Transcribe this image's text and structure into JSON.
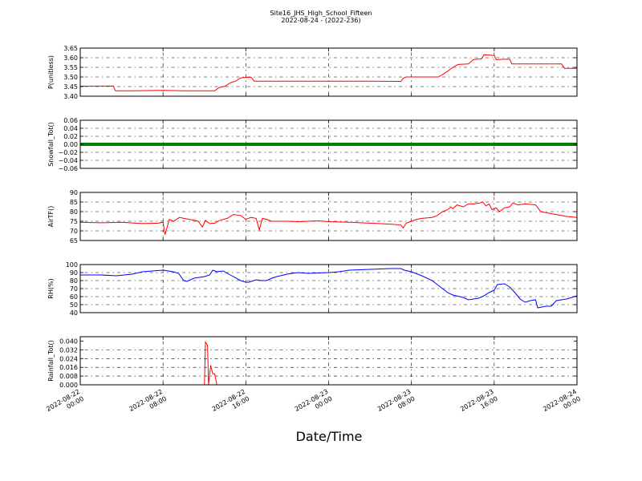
{
  "figure": {
    "title": "Site16_JHS_High_School_Fifteen",
    "subtitle": "2022-08-24 - (2022-236)",
    "xlabel": "Date/Time"
  },
  "chart_data": {
    "type": "line",
    "x_tick_labels": [
      [
        "2022-08-22",
        "00:00"
      ],
      [
        "2022-08-22",
        "08:00"
      ],
      [
        "2022-08-22",
        "16:00"
      ],
      [
        "2022-08-23",
        "00:00"
      ],
      [
        "2022-08-23",
        "08:00"
      ],
      [
        "2022-08-23",
        "16:00"
      ],
      [
        "2022-08-24",
        "00:00"
      ]
    ],
    "x_range_hours": [
      0,
      48
    ],
    "grid": true,
    "panels": [
      {
        "ylabel": "P(unitless)",
        "color": "#ff0000",
        "ylim": [
          3.4,
          3.65
        ],
        "yticks": [
          "3.40",
          "3.45",
          "3.50",
          "3.55",
          "3.60",
          "3.65"
        ],
        "ytick_values": [
          3.4,
          3.45,
          3.5,
          3.55,
          3.6,
          3.65
        ],
        "series": [
          [
            0,
            3.452
          ],
          [
            3.2,
            3.453
          ],
          [
            3.4,
            3.428
          ],
          [
            5,
            3.428
          ],
          [
            8,
            3.43
          ],
          [
            10,
            3.428
          ],
          [
            13,
            3.428
          ],
          [
            13.4,
            3.445
          ],
          [
            14,
            3.452
          ],
          [
            14.5,
            3.47
          ],
          [
            15,
            3.478
          ],
          [
            15.5,
            3.495
          ],
          [
            16,
            3.498
          ],
          [
            16.5,
            3.499
          ],
          [
            16.8,
            3.478
          ],
          [
            20,
            3.478
          ],
          [
            24,
            3.478
          ],
          [
            28,
            3.478
          ],
          [
            31,
            3.477
          ],
          [
            31.2,
            3.493
          ],
          [
            31.5,
            3.5
          ],
          [
            34,
            3.5
          ],
          [
            34.6,
            3.5
          ],
          [
            35,
            3.512
          ],
          [
            35.5,
            3.53
          ],
          [
            36,
            3.55
          ],
          [
            36.5,
            3.565
          ],
          [
            37.5,
            3.568
          ],
          [
            38,
            3.59
          ],
          [
            38.8,
            3.595
          ],
          [
            39,
            3.615
          ],
          [
            40,
            3.612
          ],
          [
            40.2,
            3.59
          ],
          [
            41,
            3.592
          ],
          [
            41.5,
            3.592
          ],
          [
            41.7,
            3.568
          ],
          [
            45,
            3.568
          ],
          [
            46.5,
            3.568
          ],
          [
            46.8,
            3.545
          ],
          [
            48,
            3.545
          ]
        ]
      },
      {
        "ylabel": "Snowfall_Tot()",
        "color": "#008000",
        "ylim": [
          -0.06,
          0.06
        ],
        "yticks": [
          "−0.06",
          "−0.04",
          "−0.02",
          "0.00",
          "0.02",
          "0.04",
          "0.06"
        ],
        "ytick_values": [
          -0.06,
          -0.04,
          -0.02,
          0.0,
          0.02,
          0.04,
          0.06
        ],
        "series": [
          [
            0,
            0
          ],
          [
            48,
            0
          ]
        ]
      },
      {
        "ylabel": "AirTF()",
        "color": "#ff0000",
        "ylim": [
          65,
          90
        ],
        "yticks": [
          "65",
          "70",
          "75",
          "80",
          "85",
          "90"
        ],
        "ytick_values": [
          65,
          70,
          75,
          80,
          85,
          90
        ],
        "series": [
          [
            0,
            74.5
          ],
          [
            2,
            74.2
          ],
          [
            4,
            74.5
          ],
          [
            6,
            73.8
          ],
          [
            7.5,
            74.0
          ],
          [
            8,
            74.5
          ],
          [
            8.2,
            68
          ],
          [
            8.6,
            76
          ],
          [
            9,
            75
          ],
          [
            9.6,
            77
          ],
          [
            10,
            76.5
          ],
          [
            11,
            75.5
          ],
          [
            11.4,
            75
          ],
          [
            11.8,
            72
          ],
          [
            12.1,
            75.5
          ],
          [
            12.5,
            73.8
          ],
          [
            13,
            74
          ],
          [
            13.5,
            75.5
          ],
          [
            14.2,
            76.5
          ],
          [
            14.8,
            78.5
          ],
          [
            15.5,
            78
          ],
          [
            16,
            76
          ],
          [
            16.5,
            77
          ],
          [
            17,
            76.5
          ],
          [
            17.3,
            70.5
          ],
          [
            17.6,
            76.5
          ],
          [
            18,
            76
          ],
          [
            18.5,
            75
          ],
          [
            20,
            75
          ],
          [
            21,
            74.8
          ],
          [
            23,
            75.2
          ],
          [
            24,
            74.8
          ],
          [
            26,
            74.5
          ],
          [
            28,
            74
          ],
          [
            30,
            73.5
          ],
          [
            31,
            73
          ],
          [
            31.2,
            71.5
          ],
          [
            31.5,
            74
          ],
          [
            32,
            75
          ],
          [
            32.5,
            76
          ],
          [
            33,
            76.5
          ],
          [
            34,
            77
          ],
          [
            34.5,
            78
          ],
          [
            35,
            80
          ],
          [
            35.5,
            81
          ],
          [
            35.8,
            82.5
          ],
          [
            36,
            81.5
          ],
          [
            36.4,
            83.5
          ],
          [
            37,
            82.5
          ],
          [
            37.5,
            84
          ],
          [
            38,
            84
          ],
          [
            38.6,
            84.5
          ],
          [
            38.9,
            85
          ],
          [
            39.2,
            83
          ],
          [
            39.5,
            84
          ],
          [
            39.8,
            81
          ],
          [
            40.2,
            82
          ],
          [
            40.5,
            80
          ],
          [
            41,
            82
          ],
          [
            41.5,
            82.5
          ],
          [
            41.8,
            84.5
          ],
          [
            42.3,
            83.5
          ],
          [
            43,
            84
          ],
          [
            44,
            83.5
          ],
          [
            44.5,
            80
          ],
          [
            45,
            79.5
          ],
          [
            46,
            78.5
          ],
          [
            47,
            77.5
          ],
          [
            48,
            77
          ]
        ]
      },
      {
        "ylabel": "RH(%)",
        "color": "#0000ff",
        "ylim": [
          40,
          100
        ],
        "yticks": [
          "40",
          "50",
          "60",
          "70",
          "80",
          "90",
          "100"
        ],
        "ytick_values": [
          40,
          50,
          60,
          70,
          80,
          90,
          100
        ],
        "series": [
          [
            0,
            87
          ],
          [
            2,
            87
          ],
          [
            3.5,
            86
          ],
          [
            5,
            88
          ],
          [
            6,
            91
          ],
          [
            7,
            92
          ],
          [
            8,
            93
          ],
          [
            9,
            91
          ],
          [
            9.5,
            89
          ],
          [
            10,
            80
          ],
          [
            10.3,
            79
          ],
          [
            11,
            83
          ],
          [
            12,
            85
          ],
          [
            12.5,
            87
          ],
          [
            12.8,
            93
          ],
          [
            13.2,
            91
          ],
          [
            13.8,
            92
          ],
          [
            14.5,
            87
          ],
          [
            15.5,
            80
          ],
          [
            16,
            78
          ],
          [
            16.3,
            78
          ],
          [
            17,
            81
          ],
          [
            17.5,
            80
          ],
          [
            18,
            80
          ],
          [
            18.5,
            83
          ],
          [
            19,
            85
          ],
          [
            20,
            88
          ],
          [
            21,
            90
          ],
          [
            22,
            89
          ],
          [
            24,
            90
          ],
          [
            25,
            91
          ],
          [
            26,
            93
          ],
          [
            28,
            94
          ],
          [
            30,
            95
          ],
          [
            31,
            95
          ],
          [
            31.3,
            93
          ],
          [
            32,
            91
          ],
          [
            33,
            86
          ],
          [
            34,
            80
          ],
          [
            35,
            70
          ],
          [
            35.5,
            65
          ],
          [
            36,
            62
          ],
          [
            37,
            59
          ],
          [
            37.5,
            56
          ],
          [
            38.5,
            58
          ],
          [
            39,
            61
          ],
          [
            39.5,
            65
          ],
          [
            40,
            68
          ],
          [
            40.3,
            75
          ],
          [
            41,
            76
          ],
          [
            41.5,
            72
          ],
          [
            42,
            65
          ],
          [
            42.5,
            57
          ],
          [
            43,
            53
          ],
          [
            43.5,
            55
          ],
          [
            44,
            56
          ],
          [
            44.2,
            46
          ],
          [
            45,
            48
          ],
          [
            45.5,
            48
          ],
          [
            46,
            55
          ],
          [
            47,
            57
          ],
          [
            48,
            61
          ]
        ]
      },
      {
        "ylabel": "Rainfall_Tot()",
        "color": "#ff0000",
        "ylim": [
          0,
          0.044
        ],
        "yticks": [
          "0.000",
          "0.008",
          "0.016",
          "0.024",
          "0.032",
          "0.040"
        ],
        "ytick_values": [
          0,
          0.008,
          0.016,
          0.024,
          0.032,
          0.04
        ],
        "series": [
          [
            0,
            0
          ],
          [
            11.9,
            0
          ],
          [
            12,
            0
          ],
          [
            12.1,
            0.039
          ],
          [
            12.3,
            0.036
          ],
          [
            12.4,
            0
          ],
          [
            12.6,
            0.018
          ],
          [
            12.8,
            0.01
          ],
          [
            13,
            0.01
          ],
          [
            13.2,
            0
          ],
          [
            48,
            0
          ]
        ]
      }
    ]
  }
}
